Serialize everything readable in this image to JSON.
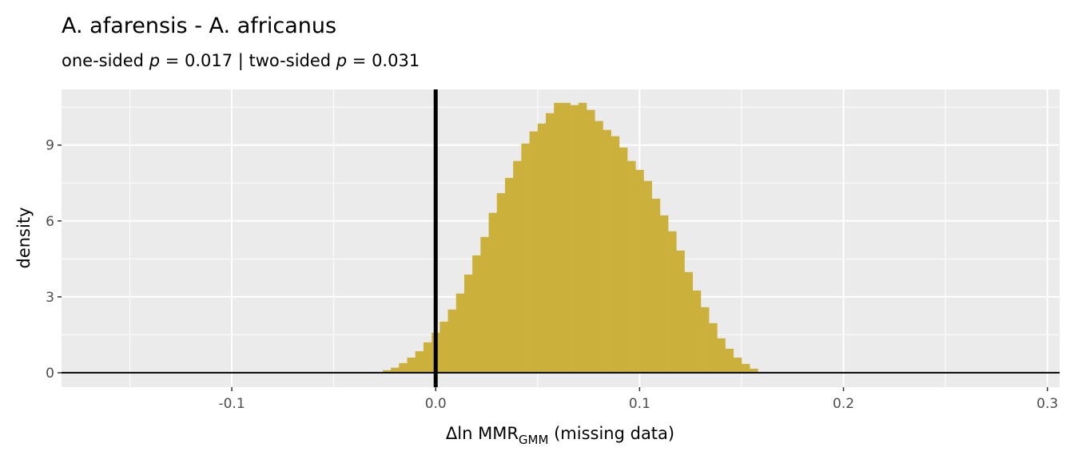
{
  "chart_data": {
    "type": "histogram",
    "title": "A. afarensis - A. africanus",
    "subtitle": {
      "part1": "one-sided ",
      "p1": "p",
      "part2": " = 0.017 | two-sided ",
      "p2": "p",
      "part3": " = 0.031"
    },
    "xlabel": {
      "prefix": "Δln MMR",
      "subscript": "GMM",
      "suffix": " (missing data)"
    },
    "ylabel": "density",
    "xlim": [
      -0.1835,
      0.306
    ],
    "ylim": [
      -0.57,
      11.2
    ],
    "x_ticks": [
      -0.1,
      0.0,
      0.1,
      0.2,
      0.3
    ],
    "x_tick_labels": [
      "-0.1",
      "0.0",
      "0.1",
      "0.2",
      "0.3"
    ],
    "y_ticks": [
      0,
      3,
      6,
      9
    ],
    "y_tick_labels": [
      "0",
      "3",
      "6",
      "9"
    ],
    "grid": true,
    "binwidth": 0.004,
    "bin_centers": [
      -0.028,
      -0.024,
      -0.02,
      -0.016,
      -0.012,
      -0.008,
      -0.004,
      0.0,
      0.004,
      0.008,
      0.012,
      0.016,
      0.02,
      0.024,
      0.028,
      0.032,
      0.036,
      0.04,
      0.044,
      0.048,
      0.052,
      0.056,
      0.06,
      0.064,
      0.068,
      0.072,
      0.076,
      0.08,
      0.084,
      0.088,
      0.092,
      0.096,
      0.1,
      0.104,
      0.108,
      0.112,
      0.116,
      0.12,
      0.124,
      0.128,
      0.132,
      0.136,
      0.14,
      0.144,
      0.148,
      0.152,
      0.156,
      0.16
    ],
    "density": [
      0.03,
      0.1,
      0.2,
      0.38,
      0.6,
      0.85,
      1.2,
      1.58,
      2.02,
      2.5,
      3.13,
      3.88,
      4.64,
      5.37,
      6.32,
      7.1,
      7.7,
      8.37,
      9.06,
      9.54,
      9.85,
      10.26,
      10.67,
      10.67,
      10.58,
      10.67,
      10.39,
      9.95,
      9.6,
      9.35,
      8.9,
      8.37,
      8.02,
      7.58,
      6.88,
      6.22,
      5.59,
      4.83,
      3.98,
      3.25,
      2.59,
      1.96,
      1.36,
      0.95,
      0.6,
      0.35,
      0.16,
      0.03
    ],
    "reference_lines": {
      "vertical_x": 0,
      "horizontal_y": 0
    },
    "colors": {
      "fill": "#CBB03C",
      "panel": "#EBEBEB",
      "grid": "#FFFFFF",
      "reference": "#000000"
    }
  }
}
